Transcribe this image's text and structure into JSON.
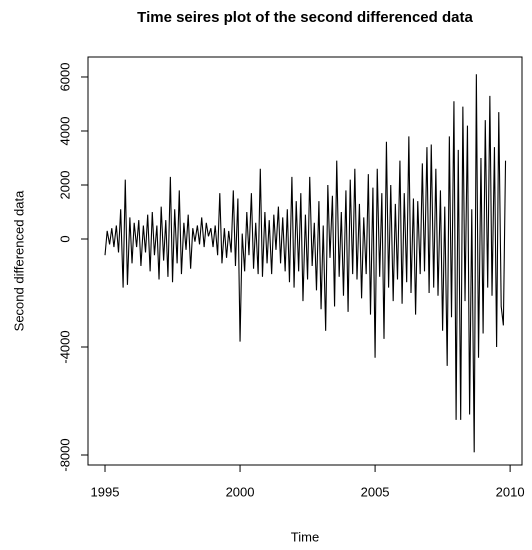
{
  "chart_data": {
    "type": "line",
    "title": "Time seires plot of the second differenced data",
    "x_label": "Time",
    "y_label": "Second differenced data",
    "x": [
      1995,
      1995.08,
      1995.17,
      1995.25,
      1995.33,
      1995.42,
      1995.5,
      1995.58,
      1995.67,
      1995.75,
      1995.83,
      1995.92,
      1996,
      1996.08,
      1996.17,
      1996.25,
      1996.33,
      1996.42,
      1996.5,
      1996.58,
      1996.67,
      1996.75,
      1996.83,
      1996.92,
      1997,
      1997.08,
      1997.17,
      1997.25,
      1997.33,
      1997.42,
      1997.5,
      1997.58,
      1997.67,
      1997.75,
      1997.83,
      1997.92,
      1998,
      1998.08,
      1998.17,
      1998.25,
      1998.33,
      1998.42,
      1998.5,
      1998.58,
      1998.67,
      1998.75,
      1998.83,
      1998.92,
      1999,
      1999.08,
      1999.17,
      1999.25,
      1999.33,
      1999.42,
      1999.5,
      1999.58,
      1999.67,
      1999.75,
      1999.83,
      1999.92,
      2000,
      2000.08,
      2000.17,
      2000.25,
      2000.33,
      2000.42,
      2000.5,
      2000.58,
      2000.67,
      2000.75,
      2000.83,
      2000.92,
      2001,
      2001.08,
      2001.17,
      2001.25,
      2001.33,
      2001.42,
      2001.5,
      2001.58,
      2001.67,
      2001.75,
      2001.83,
      2001.92,
      2002,
      2002.08,
      2002.17,
      2002.25,
      2002.33,
      2002.42,
      2002.5,
      2002.58,
      2002.67,
      2002.75,
      2002.83,
      2002.92,
      2003,
      2003.08,
      2003.17,
      2003.25,
      2003.33,
      2003.42,
      2003.5,
      2003.58,
      2003.67,
      2003.75,
      2003.83,
      2003.92,
      2004,
      2004.08,
      2004.17,
      2004.25,
      2004.33,
      2004.42,
      2004.5,
      2004.58,
      2004.67,
      2004.75,
      2004.83,
      2004.92,
      2005,
      2005.08,
      2005.17,
      2005.25,
      2005.33,
      2005.42,
      2005.5,
      2005.58,
      2005.67,
      2005.75,
      2005.83,
      2005.92,
      2006,
      2006.08,
      2006.17,
      2006.25,
      2006.33,
      2006.42,
      2006.5,
      2006.58,
      2006.67,
      2006.75,
      2006.83,
      2006.92,
      2007,
      2007.08,
      2007.17,
      2007.25,
      2007.33,
      2007.42,
      2007.5,
      2007.58,
      2007.67,
      2007.75,
      2007.83,
      2007.92,
      2008,
      2008.08,
      2008.17,
      2008.25,
      2008.33,
      2008.42,
      2008.5,
      2008.58,
      2008.67,
      2008.75,
      2008.83,
      2008.92,
      2009,
      2009.08,
      2009.17,
      2009.25,
      2009.33,
      2009.42,
      2009.5,
      2009.58,
      2009.67,
      2009.75,
      2009.83
    ],
    "values": [
      -600,
      300,
      -200,
      400,
      -300,
      500,
      -500,
      1100,
      -1800,
      2200,
      -1700,
      800,
      -900,
      600,
      -300,
      700,
      -1000,
      500,
      -500,
      900,
      -1200,
      1000,
      -600,
      500,
      -1500,
      1200,
      -800,
      700,
      -1400,
      2300,
      -1600,
      1100,
      -900,
      1800,
      -1300,
      600,
      -400,
      900,
      -1100,
      400,
      -100,
      500,
      -200,
      800,
      -300,
      600,
      100,
      400,
      -300,
      500,
      -600,
      1700,
      -900,
      400,
      -700,
      300,
      -500,
      1800,
      -1000,
      1500,
      -3800,
      200,
      -1200,
      1000,
      -600,
      1700,
      -1100,
      600,
      -1300,
      2600,
      -1400,
      1000,
      -900,
      700,
      -1300,
      900,
      -400,
      1200,
      -900,
      800,
      -1200,
      1100,
      -1600,
      2300,
      -1800,
      1400,
      -1200,
      1700,
      -2300,
      900,
      -1500,
      2300,
      -1000,
      600,
      -1900,
      1400,
      -2600,
      500,
      -3400,
      2000,
      -700,
      1600,
      -2500,
      2900,
      -1400,
      1000,
      -2100,
      1800,
      -2700,
      2200,
      -1300,
      2600,
      -1500,
      1300,
      -2200,
      800,
      -1300,
      2400,
      -2800,
      1900,
      -4400,
      2600,
      -1400,
      1700,
      -3700,
      3600,
      -1800,
      2000,
      -2300,
      1300,
      -1500,
      2900,
      -2400,
      1700,
      -1600,
      3800,
      -2000,
      1500,
      -2800,
      1400,
      -1300,
      2800,
      -1200,
      3400,
      -2000,
      3500,
      -1800,
      2600,
      -2100,
      1800,
      -3400,
      1200,
      -4700,
      3800,
      -2900,
      5100,
      -6700,
      3300,
      -6700,
      4900,
      -2300,
      4200,
      -6500,
      1100,
      -7900,
      6100,
      -4400,
      3000,
      -3500,
      4400,
      -1800,
      5300,
      -2100,
      3400,
      -4000,
      4700,
      -2500,
      -3200,
      2900
    ],
    "color": "#000000",
    "xlim": [
      1994.37,
      2010.44
    ],
    "ylim": [
      -8370,
      6740
    ],
    "xticks": [
      1995,
      2000,
      2005,
      2010
    ],
    "yticks": [
      -8000,
      -4000,
      0,
      2000,
      4000,
      6000
    ]
  }
}
